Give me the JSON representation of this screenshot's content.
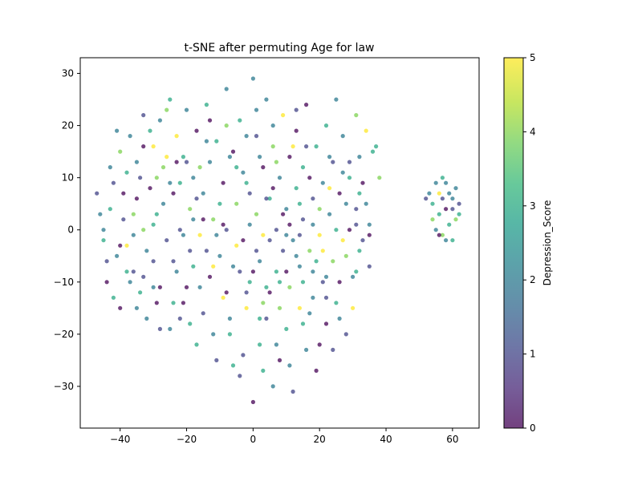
{
  "chart_data": {
    "type": "scatter",
    "title": "t-SNE after permuting Age for law",
    "xlabel": "",
    "ylabel": "",
    "xlim": [
      -52,
      68
    ],
    "ylim": [
      -38,
      33
    ],
    "x_ticks": [
      -40,
      -20,
      0,
      20,
      40,
      60
    ],
    "y_ticks": [
      -30,
      -20,
      -10,
      0,
      10,
      20,
      30
    ],
    "x_tick_labels": [
      "−40",
      "−20",
      "0",
      "20",
      "40",
      "60"
    ],
    "y_tick_labels": [
      "−30",
      "−20",
      "−10",
      "0",
      "10",
      "20",
      "30"
    ],
    "grid": false,
    "colorbar": {
      "label": "Depression_Score",
      "colormap": "viridis",
      "range": [
        0,
        5
      ],
      "ticks": [
        0,
        1,
        2,
        3,
        4,
        5
      ],
      "tick_labels": [
        "0",
        "1",
        "2",
        "3",
        "4",
        "5"
      ]
    },
    "colors": {
      "viridis": [
        "#440154",
        "#482878",
        "#3e4989",
        "#31688e",
        "#26828e",
        "#1f9e89",
        "#35b779",
        "#6ece58",
        "#b5de2b",
        "#fde725"
      ]
    },
    "marker_alpha": 0.75,
    "points": [
      [
        -47,
        7,
        1
      ],
      [
        -45,
        0,
        2
      ],
      [
        -44,
        -10,
        0
      ],
      [
        -43,
        4,
        3
      ],
      [
        -42,
        9,
        1
      ],
      [
        -41,
        -5,
        2
      ],
      [
        -40,
        15,
        4
      ],
      [
        -40,
        -15,
        0
      ],
      [
        -39,
        2,
        1
      ],
      [
        -38,
        11,
        3
      ],
      [
        -38,
        -3,
        5
      ],
      [
        -37,
        18,
        2
      ],
      [
        -36,
        -8,
        1
      ],
      [
        -35,
        6,
        0
      ],
      [
        -35,
        13,
        2
      ],
      [
        -34,
        -12,
        3
      ],
      [
        -33,
        22,
        1
      ],
      [
        -33,
        0,
        4
      ],
      [
        -32,
        -17,
        2
      ],
      [
        -31,
        8,
        0
      ],
      [
        -30,
        16,
        5
      ],
      [
        -30,
        -6,
        1
      ],
      [
        -29,
        3,
        3
      ],
      [
        -28,
        21,
        2
      ],
      [
        -28,
        -11,
        0
      ],
      [
        -27,
        12,
        4
      ],
      [
        -26,
        -2,
        1
      ],
      [
        -25,
        25,
        3
      ],
      [
        -25,
        -19,
        2
      ],
      [
        -24,
        7,
        0
      ],
      [
        -23,
        18,
        5
      ],
      [
        -23,
        -8,
        2
      ],
      [
        -22,
        0,
        1
      ],
      [
        -21,
        14,
        3
      ],
      [
        -21,
        -14,
        0
      ],
      [
        -20,
        23,
        2
      ],
      [
        -19,
        4,
        4
      ],
      [
        -19,
        -4,
        1
      ],
      [
        -18,
        10,
        2
      ],
      [
        -17,
        -22,
        3
      ],
      [
        -17,
        19,
        0
      ],
      [
        -16,
        -1,
        5
      ],
      [
        -15,
        7,
        2
      ],
      [
        -15,
        -16,
        1
      ],
      [
        -14,
        24,
        3
      ],
      [
        -13,
        -9,
        0
      ],
      [
        -13,
        13,
        2
      ],
      [
        -12,
        2,
        4
      ],
      [
        -11,
        -25,
        1
      ],
      [
        -11,
        17,
        3
      ],
      [
        -10,
        -5,
        2
      ],
      [
        -9,
        9,
        0
      ],
      [
        -9,
        -13,
        5
      ],
      [
        -8,
        27,
        2
      ],
      [
        -8,
        0,
        1
      ],
      [
        -7,
        -20,
        3
      ],
      [
        -6,
        15,
        0
      ],
      [
        -6,
        -7,
        2
      ],
      [
        -5,
        5,
        4
      ],
      [
        -4,
        -28,
        1
      ],
      [
        -4,
        21,
        3
      ],
      [
        -3,
        -2,
        0
      ],
      [
        -3,
        11,
        2
      ],
      [
        -2,
        -15,
        5
      ],
      [
        -1,
        7,
        1
      ],
      [
        -1,
        -10,
        3
      ],
      [
        0,
        29,
        2
      ],
      [
        0,
        -33,
        0
      ],
      [
        1,
        3,
        4
      ],
      [
        1,
        18,
        1
      ],
      [
        2,
        -6,
        2
      ],
      [
        2,
        -22,
        3
      ],
      [
        3,
        12,
        0
      ],
      [
        3,
        -1,
        5
      ],
      [
        4,
        25,
        2
      ],
      [
        4,
        -17,
        1
      ],
      [
        5,
        6,
        3
      ],
      [
        5,
        -12,
        0
      ],
      [
        6,
        -30,
        2
      ],
      [
        6,
        16,
        4
      ],
      [
        7,
        0,
        1
      ],
      [
        7,
        -8,
        3
      ],
      [
        8,
        10,
        2
      ],
      [
        8,
        -25,
        0
      ],
      [
        9,
        22,
        5
      ],
      [
        9,
        -4,
        1
      ],
      [
        10,
        4,
        2
      ],
      [
        10,
        -19,
        3
      ],
      [
        11,
        14,
        0
      ],
      [
        11,
        -11,
        4
      ],
      [
        12,
        -2,
        2
      ],
      [
        12,
        -31,
        1
      ],
      [
        13,
        8,
        3
      ],
      [
        13,
        19,
        0
      ],
      [
        14,
        -7,
        2
      ],
      [
        14,
        -15,
        5
      ],
      [
        15,
        2,
        1
      ],
      [
        15,
        12,
        3
      ],
      [
        16,
        -23,
        2
      ],
      [
        16,
        24,
        0
      ],
      [
        17,
        -4,
        4
      ],
      [
        18,
        6,
        1
      ],
      [
        18,
        -13,
        2
      ],
      [
        19,
        16,
        3
      ],
      [
        19,
        -27,
        0
      ],
      [
        20,
        -1,
        5
      ],
      [
        21,
        9,
        2
      ],
      [
        21,
        -10,
        1
      ],
      [
        22,
        20,
        3
      ],
      [
        22,
        -18,
        0
      ],
      [
        23,
        3,
        2
      ],
      [
        24,
        -6,
        4
      ],
      [
        24,
        13,
        1
      ],
      [
        25,
        25,
        2
      ],
      [
        25,
        -14,
        3
      ],
      [
        26,
        7,
        0
      ],
      [
        27,
        -2,
        5
      ],
      [
        27,
        18,
        2
      ],
      [
        28,
        -20,
        1
      ],
      [
        29,
        10,
        3
      ],
      [
        29,
        0,
        0
      ],
      [
        30,
        -9,
        2
      ],
      [
        31,
        22,
        4
      ],
      [
        31,
        4,
        1
      ],
      [
        32,
        14,
        2
      ],
      [
        32,
        -4,
        3
      ],
      [
        33,
        9,
        0
      ],
      [
        34,
        19,
        5
      ],
      [
        35,
        1,
        2
      ],
      [
        35,
        -7,
        1
      ],
      [
        36,
        15,
        3
      ],
      [
        38,
        10,
        4
      ],
      [
        -46,
        3,
        2
      ],
      [
        -44,
        -6,
        1
      ],
      [
        -42,
        -13,
        3
      ],
      [
        -39,
        7,
        0
      ],
      [
        -37,
        -10,
        2
      ],
      [
        -36,
        3,
        4
      ],
      [
        -34,
        10,
        1
      ],
      [
        -32,
        -4,
        2
      ],
      [
        -31,
        19,
        3
      ],
      [
        -29,
        -14,
        0
      ],
      [
        -27,
        5,
        2
      ],
      [
        -26,
        14,
        5
      ],
      [
        -24,
        -6,
        1
      ],
      [
        -22,
        9,
        3
      ],
      [
        -20,
        -11,
        0
      ],
      [
        -18,
        2,
        2
      ],
      [
        -16,
        12,
        4
      ],
      [
        -14,
        -4,
        1
      ],
      [
        -12,
        -20,
        2
      ],
      [
        -10,
        5,
        3
      ],
      [
        -8,
        -12,
        0
      ],
      [
        -7,
        14,
        2
      ],
      [
        -5,
        -3,
        5
      ],
      [
        -3,
        -24,
        1
      ],
      [
        -2,
        9,
        3
      ],
      [
        0,
        -8,
        0
      ],
      [
        2,
        14,
        2
      ],
      [
        3,
        -14,
        4
      ],
      [
        5,
        -2,
        1
      ],
      [
        6,
        20,
        2
      ],
      [
        8,
        -10,
        3
      ],
      [
        9,
        3,
        0
      ],
      [
        11,
        -26,
        2
      ],
      [
        12,
        16,
        5
      ],
      [
        14,
        -1,
        1
      ],
      [
        15,
        -18,
        3
      ],
      [
        17,
        10,
        0
      ],
      [
        18,
        -8,
        2
      ],
      [
        20,
        4,
        4
      ],
      [
        22,
        -13,
        1
      ],
      [
        23,
        14,
        2
      ],
      [
        25,
        0,
        3
      ],
      [
        26,
        -10,
        0
      ],
      [
        28,
        5,
        2
      ],
      [
        30,
        -15,
        5
      ],
      [
        33,
        -2,
        1
      ],
      [
        55,
        9,
        2
      ],
      [
        56,
        3,
        3
      ],
      [
        57,
        6,
        1
      ],
      [
        57,
        -1,
        4
      ],
      [
        58,
        9,
        2
      ],
      [
        58,
        4,
        0
      ],
      [
        59,
        1,
        3
      ],
      [
        59,
        7,
        2
      ],
      [
        60,
        4,
        1
      ],
      [
        60,
        -2,
        3
      ],
      [
        61,
        8,
        2
      ],
      [
        61,
        2,
        4
      ],
      [
        62,
        5,
        1
      ],
      [
        54,
        5,
        3
      ],
      [
        55,
        0,
        2
      ],
      [
        56,
        -1,
        0
      ],
      [
        53,
        7,
        2
      ],
      [
        54,
        2,
        4
      ],
      [
        57,
        10,
        3
      ],
      [
        60,
        6,
        2
      ],
      [
        52,
        6,
        1
      ],
      [
        56,
        7,
        5
      ],
      [
        58,
        -2,
        2
      ],
      [
        62,
        3,
        3
      ],
      [
        -41,
        19,
        2
      ],
      [
        -38,
        -8,
        3
      ],
      [
        -35,
        -15,
        2
      ],
      [
        -33,
        16,
        0
      ],
      [
        -30,
        1,
        3
      ],
      [
        -28,
        -19,
        1
      ],
      [
        -26,
        23,
        4
      ],
      [
        -23,
        13,
        0
      ],
      [
        -21,
        -1,
        2
      ],
      [
        -19,
        -18,
        3
      ],
      [
        -17,
        6,
        1
      ],
      [
        -14,
        17,
        2
      ],
      [
        -12,
        -7,
        5
      ],
      [
        -9,
        1,
        0
      ],
      [
        -7,
        -17,
        2
      ],
      [
        -5,
        12,
        3
      ],
      [
        -2,
        -12,
        1
      ],
      [
        1,
        23,
        2
      ],
      [
        3,
        -27,
        3
      ],
      [
        6,
        8,
        0
      ],
      [
        8,
        -15,
        4
      ],
      [
        10,
        -1,
        2
      ],
      [
        13,
        23,
        1
      ],
      [
        15,
        -10,
        3
      ],
      [
        18,
        1,
        2
      ],
      [
        20,
        -22,
        0
      ],
      [
        23,
        8,
        5
      ],
      [
        26,
        -17,
        2
      ],
      [
        29,
        13,
        1
      ],
      [
        31,
        -8,
        3
      ],
      [
        -45,
        -2,
        3
      ],
      [
        -43,
        12,
        2
      ],
      [
        -40,
        -3,
        0
      ],
      [
        -36,
        -1,
        2
      ],
      [
        -33,
        -9,
        1
      ],
      [
        -29,
        10,
        4
      ],
      [
        -25,
        9,
        2
      ],
      [
        -22,
        -17,
        1
      ],
      [
        -18,
        -7,
        3
      ],
      [
        -15,
        2,
        0
      ],
      [
        -11,
        -1,
        2
      ],
      [
        -8,
        20,
        4
      ],
      [
        -4,
        -8,
        1
      ],
      [
        -1,
        1,
        2
      ],
      [
        2,
        -17,
        3
      ],
      [
        4,
        6,
        1
      ],
      [
        7,
        -22,
        2
      ],
      [
        11,
        1,
        0
      ],
      [
        14,
        5,
        3
      ],
      [
        17,
        -16,
        2
      ],
      [
        21,
        -4,
        5
      ],
      [
        24,
        -23,
        1
      ],
      [
        27,
        11,
        2
      ],
      [
        32,
        7,
        3
      ],
      [
        35,
        -1,
        0
      ],
      [
        -30,
        -11,
        2
      ],
      [
        -24,
        -14,
        3
      ],
      [
        -20,
        13,
        1
      ],
      [
        -16,
        -11,
        2
      ],
      [
        -13,
        21,
        0
      ],
      [
        -6,
        -26,
        3
      ],
      [
        -2,
        18,
        2
      ],
      [
        1,
        -4,
        1
      ],
      [
        4,
        -11,
        3
      ],
      [
        7,
        13,
        4
      ],
      [
        10,
        -8,
        0
      ],
      [
        13,
        -5,
        2
      ],
      [
        16,
        16,
        1
      ],
      [
        19,
        -6,
        3
      ],
      [
        22,
        -9,
        2
      ],
      [
        28,
        -5,
        4
      ],
      [
        31,
        1,
        1
      ],
      [
        34,
        5,
        2
      ],
      [
        37,
        16,
        3
      ]
    ]
  }
}
